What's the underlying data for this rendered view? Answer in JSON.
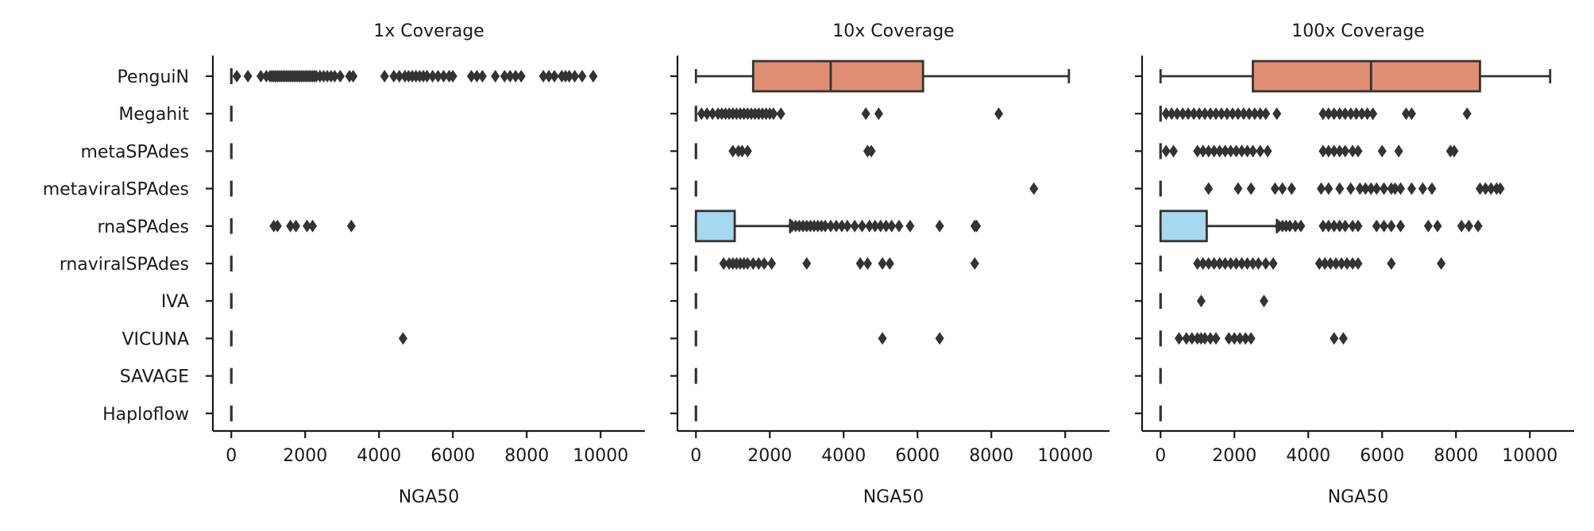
{
  "figure": {
    "categories": [
      "PenguiN",
      "Megahit",
      "metaSPAdes",
      "metaviralSPAdes",
      "rnaSPAdes",
      "rnaviralSPAdes",
      "IVA",
      "VICUNA",
      "SAVAGE",
      "Haploflow"
    ],
    "colors": {
      "PenguiN": "#e08f74",
      "rnaSPAdes": "#a6d8f0",
      "line": "#333333"
    }
  },
  "chart_data": [
    {
      "type": "box",
      "title": "1x Coverage",
      "xlabel": "NGA50",
      "xticks": [
        0,
        2000,
        4000,
        6000,
        8000,
        10000
      ],
      "xlim": [
        -500,
        11200
      ],
      "boxes": [
        {
          "category": "PenguiN",
          "q1": 0,
          "median": 0,
          "q3": 0,
          "whisker_low": 0,
          "whisker_high": 0,
          "outliers": [
            150,
            450,
            800,
            950,
            1050,
            1100,
            1150,
            1200,
            1250,
            1300,
            1350,
            1400,
            1450,
            1500,
            1550,
            1600,
            1650,
            1700,
            1750,
            1800,
            1850,
            1900,
            1950,
            2000,
            2050,
            2100,
            2150,
            2200,
            2250,
            2300,
            2400,
            2500,
            2600,
            2700,
            2800,
            2950,
            3200,
            3300,
            4150,
            4400,
            4550,
            4700,
            4800,
            4900,
            5000,
            5100,
            5200,
            5300,
            5450,
            5600,
            5750,
            5900,
            6000,
            6500,
            6650,
            6800,
            7150,
            7400,
            7550,
            7700,
            7850,
            8450,
            8600,
            8750,
            8950,
            9050,
            9150,
            9300,
            9500,
            9800
          ]
        },
        {
          "category": "Megahit",
          "q1": 0,
          "median": 0,
          "q3": 0,
          "whisker_low": 0,
          "whisker_high": 0,
          "outliers": []
        },
        {
          "category": "metaSPAdes",
          "q1": 0,
          "median": 0,
          "q3": 0,
          "whisker_low": 0,
          "whisker_high": 0,
          "outliers": []
        },
        {
          "category": "metaviralSPAdes",
          "q1": 0,
          "median": 0,
          "q3": 0,
          "whisker_low": 0,
          "whisker_high": 0,
          "outliers": []
        },
        {
          "category": "rnaSPAdes",
          "q1": 0,
          "median": 0,
          "q3": 0,
          "whisker_low": 0,
          "whisker_high": 0,
          "outliers": [
            1150,
            1250,
            1600,
            1750,
            2050,
            2200,
            3250
          ]
        },
        {
          "category": "rnaviralSPAdes",
          "q1": 0,
          "median": 0,
          "q3": 0,
          "whisker_low": 0,
          "whisker_high": 0,
          "outliers": []
        },
        {
          "category": "IVA",
          "q1": 0,
          "median": 0,
          "q3": 0,
          "whisker_low": 0,
          "whisker_high": 0,
          "outliers": []
        },
        {
          "category": "VICUNA",
          "q1": 0,
          "median": 0,
          "q3": 0,
          "whisker_low": 0,
          "whisker_high": 0,
          "outliers": [
            4650
          ]
        },
        {
          "category": "SAVAGE",
          "q1": 0,
          "median": 0,
          "q3": 0,
          "whisker_low": 0,
          "whisker_high": 0,
          "outliers": []
        },
        {
          "category": "Haploflow",
          "q1": 0,
          "median": 0,
          "q3": 0,
          "whisker_low": 0,
          "whisker_high": 0,
          "outliers": []
        }
      ]
    },
    {
      "type": "box",
      "title": "10x Coverage",
      "xlabel": "NGA50",
      "xticks": [
        0,
        2000,
        4000,
        6000,
        8000,
        10000
      ],
      "xlim": [
        -500,
        11200
      ],
      "boxes": [
        {
          "category": "PenguiN",
          "q1": 1550,
          "median": 3650,
          "q3": 6150,
          "whisker_low": 0,
          "whisker_high": 10100,
          "outliers": []
        },
        {
          "category": "Megahit",
          "q1": 0,
          "median": 0,
          "q3": 0,
          "whisker_low": 0,
          "whisker_high": 0,
          "outliers": [
            150,
            300,
            450,
            600,
            700,
            800,
            900,
            1000,
            1100,
            1200,
            1300,
            1400,
            1500,
            1600,
            1700,
            1800,
            1900,
            2000,
            2100,
            2300,
            4600,
            4950,
            8200
          ]
        },
        {
          "category": "metaSPAdes",
          "q1": 0,
          "median": 0,
          "q3": 0,
          "whisker_low": 0,
          "whisker_high": 0,
          "outliers": [
            1000,
            1150,
            1250,
            1400,
            4650,
            4750
          ]
        },
        {
          "category": "metaviralSPAdes",
          "q1": 0,
          "median": 0,
          "q3": 0,
          "whisker_low": 0,
          "whisker_high": 0,
          "outliers": [
            9150
          ]
        },
        {
          "category": "rnaSPAdes",
          "q1": 0,
          "median": 0,
          "q3": 1050,
          "whisker_low": 0,
          "whisker_high": 2550,
          "outliers": [
            2600,
            2700,
            2800,
            2900,
            3000,
            3100,
            3200,
            3300,
            3400,
            3500,
            3650,
            3800,
            3950,
            4100,
            4300,
            4500,
            4700,
            4850,
            5000,
            5150,
            5300,
            5500,
            5800,
            6600,
            7550,
            7600
          ]
        },
        {
          "category": "rnaviralSPAdes",
          "q1": 0,
          "median": 0,
          "q3": 0,
          "whisker_low": 0,
          "whisker_high": 0,
          "outliers": [
            750,
            900,
            1000,
            1100,
            1200,
            1300,
            1400,
            1550,
            1700,
            1850,
            2050,
            3000,
            4450,
            4650,
            5050,
            5250,
            7550
          ]
        },
        {
          "category": "IVA",
          "q1": 0,
          "median": 0,
          "q3": 0,
          "whisker_low": 0,
          "whisker_high": 0,
          "outliers": []
        },
        {
          "category": "VICUNA",
          "q1": 0,
          "median": 0,
          "q3": 0,
          "whisker_low": 0,
          "whisker_high": 0,
          "outliers": [
            5050,
            6600
          ]
        },
        {
          "category": "SAVAGE",
          "q1": 0,
          "median": 0,
          "q3": 0,
          "whisker_low": 0,
          "whisker_high": 0,
          "outliers": []
        },
        {
          "category": "Haploflow",
          "q1": 0,
          "median": 0,
          "q3": 0,
          "whisker_low": 0,
          "whisker_high": 0,
          "outliers": []
        }
      ]
    },
    {
      "type": "box",
      "title": "100x Coverage",
      "xlabel": "NGA50",
      "xticks": [
        0,
        2000,
        4000,
        6000,
        8000,
        10000
      ],
      "xlim": [
        -500,
        11200
      ],
      "boxes": [
        {
          "category": "PenguiN",
          "q1": 2500,
          "median": 5700,
          "q3": 8650,
          "whisker_low": 0,
          "whisker_high": 10550,
          "outliers": []
        },
        {
          "category": "Megahit",
          "q1": 0,
          "median": 0,
          "q3": 0,
          "whisker_low": 0,
          "whisker_high": 0,
          "outliers": [
            150,
            300,
            450,
            600,
            750,
            900,
            1050,
            1200,
            1350,
            1500,
            1650,
            1800,
            1950,
            2100,
            2250,
            2400,
            2550,
            2700,
            2850,
            3150,
            4400,
            4550,
            4700,
            4850,
            5000,
            5150,
            5300,
            5450,
            5600,
            5750,
            6650,
            6800,
            8300
          ]
        },
        {
          "category": "metaSPAdes",
          "q1": 0,
          "median": 0,
          "q3": 0,
          "whisker_low": 0,
          "whisker_high": 0,
          "outliers": [
            150,
            350,
            1000,
            1150,
            1300,
            1450,
            1600,
            1750,
            1900,
            2050,
            2200,
            2350,
            2500,
            2700,
            2900,
            4400,
            4550,
            4700,
            4850,
            5000,
            5200,
            5350,
            6000,
            6450,
            7850,
            7950
          ]
        },
        {
          "category": "metaviralSPAdes",
          "q1": 0,
          "median": 0,
          "q3": 0,
          "whisker_low": 0,
          "whisker_high": 0,
          "outliers": [
            1300,
            2100,
            2450,
            3100,
            3300,
            3550,
            4350,
            4550,
            4850,
            5150,
            5400,
            5550,
            5700,
            5850,
            6050,
            6250,
            6350,
            6500,
            6800,
            7100,
            7350,
            8650,
            8800,
            8950,
            9100,
            9200
          ]
        },
        {
          "category": "rnaSPAdes",
          "q1": 0,
          "median": 0,
          "q3": 1250,
          "whisker_low": 0,
          "whisker_high": 3150,
          "outliers": [
            3200,
            3300,
            3400,
            3500,
            3650,
            3800,
            4400,
            4550,
            4700,
            4850,
            5000,
            5200,
            5350,
            5850,
            6050,
            6250,
            6500,
            7250,
            7500,
            8150,
            8350,
            8600
          ]
        },
        {
          "category": "rnaviralSPAdes",
          "q1": 0,
          "median": 0,
          "q3": 0,
          "whisker_low": 0,
          "whisker_high": 0,
          "outliers": [
            1000,
            1150,
            1300,
            1450,
            1600,
            1750,
            1900,
            2050,
            2200,
            2350,
            2500,
            2650,
            2850,
            3050,
            4300,
            4450,
            4600,
            4750,
            4900,
            5050,
            5200,
            5350,
            6250,
            7600
          ]
        },
        {
          "category": "IVA",
          "q1": 0,
          "median": 0,
          "q3": 0,
          "whisker_low": 0,
          "whisker_high": 0,
          "outliers": [
            1100,
            2800
          ]
        },
        {
          "category": "VICUNA",
          "q1": 0,
          "median": 0,
          "q3": 0,
          "whisker_low": 0,
          "whisker_high": 0,
          "outliers": [
            500,
            700,
            850,
            1000,
            1100,
            1200,
            1350,
            1500,
            1850,
            2000,
            2150,
            2300,
            2450,
            4700,
            4950
          ]
        },
        {
          "category": "SAVAGE",
          "q1": 0,
          "median": 0,
          "q3": 0,
          "whisker_low": 0,
          "whisker_high": 0,
          "outliers": []
        },
        {
          "category": "Haploflow",
          "q1": 0,
          "median": 0,
          "q3": 0,
          "whisker_low": 0,
          "whisker_high": 0,
          "outliers": []
        }
      ]
    }
  ]
}
